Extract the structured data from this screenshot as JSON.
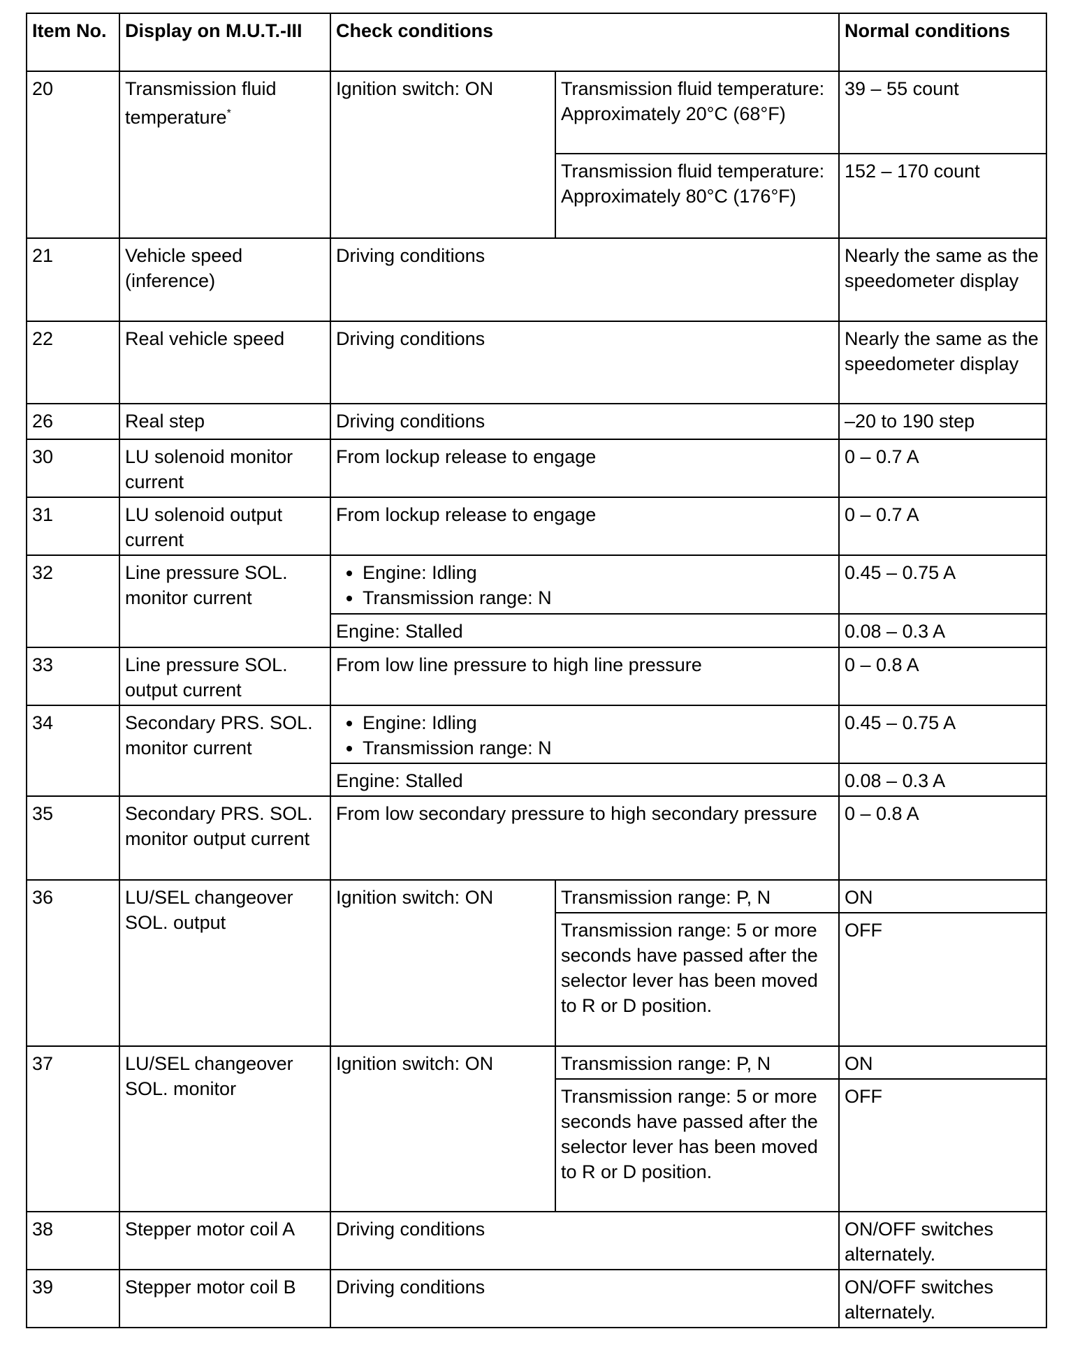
{
  "headers": [
    "Item No.",
    "Display on M.U.T.-III",
    "Check conditions",
    "Normal conditions"
  ],
  "rows": [
    {
      "item": "20",
      "display": "Transmission fluid temperature",
      "display_mark": "*",
      "check": "Ignition switch: ON",
      "sub": [
        {
          "cond": "Transmission fluid temperature: Approximately 20°C (68°F)",
          "normal": "39 – 55 count"
        },
        {
          "cond": "Transmission fluid temperature: Approximately 80°C (176°F)",
          "normal": "152 – 170 count"
        }
      ]
    },
    {
      "item": "21",
      "display": "Vehicle speed (inference)",
      "check": "Driving conditions",
      "normal": "Nearly the same as the speedometer display"
    },
    {
      "item": "22",
      "display": "Real vehicle speed",
      "check": "Driving conditions",
      "normal": "Nearly the same as the speedometer display"
    },
    {
      "item": "26",
      "display": "Real step",
      "check": "Driving conditions",
      "normal": "–20 to 190 step"
    },
    {
      "item": "30",
      "display": "LU solenoid monitor current",
      "check": "From lockup release to engage",
      "normal": "0 – 0.7 A"
    },
    {
      "item": "31",
      "display": "LU solenoid output current",
      "check": "From lockup release to engage",
      "normal": "0 – 0.7 A"
    },
    {
      "item": "32",
      "display": "Line pressure SOL. monitor current",
      "alts": [
        {
          "bullets": [
            "Engine: Idling",
            "Transmission range: N"
          ],
          "normal": "0.45 – 0.75 A"
        },
        {
          "cond": "Engine: Stalled",
          "normal": "0.08 – 0.3 A"
        }
      ]
    },
    {
      "item": "33",
      "display": "Line pressure SOL. output current",
      "check": "From low line pressure to high line pressure",
      "normal": "0 – 0.8 A"
    },
    {
      "item": "34",
      "display": "Secondary PRS. SOL. monitor current",
      "alts": [
        {
          "bullets": [
            "Engine: Idling",
            "Transmission range: N"
          ],
          "normal": "0.45 – 0.75 A"
        },
        {
          "cond": "Engine: Stalled",
          "normal": "0.08 – 0.3 A"
        }
      ]
    },
    {
      "item": "35",
      "display": "Secondary PRS. SOL. monitor output current",
      "check": "From low secondary pressure to high secondary pressure",
      "normal": "0 – 0.8 A"
    },
    {
      "item": "36",
      "display": "LU/SEL changeover SOL. output",
      "check": "Ignition switch: ON",
      "sub": [
        {
          "cond": "Transmission range: P, N",
          "normal": "ON"
        },
        {
          "cond": "Transmission range: 5 or more seconds have passed after the selector lever has been moved to R or D position.",
          "normal": "OFF"
        }
      ]
    },
    {
      "item": "37",
      "display": "LU/SEL changeover SOL. monitor",
      "check": "Ignition switch: ON",
      "sub": [
        {
          "cond": "Transmission range: P, N",
          "normal": "ON"
        },
        {
          "cond": "Transmission range: 5 or more seconds have passed after the selector lever has been moved to R or D position.",
          "normal": "OFF"
        }
      ]
    },
    {
      "item": "38",
      "display": "Stepper motor coil A",
      "check": "Driving conditions",
      "normal": "ON/OFF switches alternately."
    },
    {
      "item": "39",
      "display": "Stepper motor coil B",
      "check": "Driving conditions",
      "normal": "ON/OFF switches alternately."
    }
  ]
}
